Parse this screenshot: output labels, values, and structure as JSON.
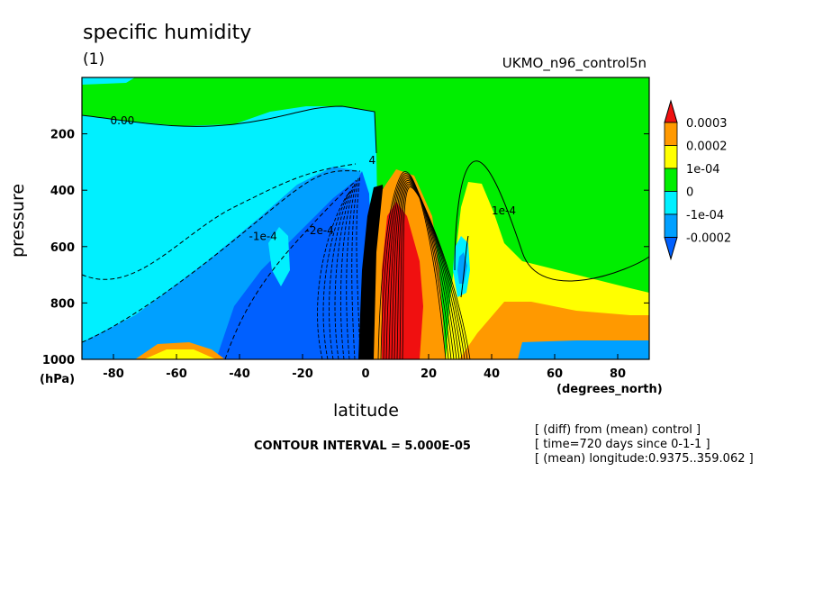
{
  "title": "specific humidity",
  "subtitle": "(1)",
  "run_label": "UKMO_n96_control5n",
  "contour_interval": "CONTOUR INTERVAL = 5.000E-05",
  "notes": [
    "[ (diff) from (mean) control ]",
    "[ time=720 days since 0-1-1 ]",
    "[ (mean) longitude:0.9375..359.062 ]"
  ],
  "colors": {
    "red": "#f01010",
    "orange": "#ff9900",
    "yellow": "#ffff00",
    "green": "#00ee00",
    "cyan": "#00f0ff",
    "light_blue": "#00a0ff",
    "blue": "#0060ff"
  },
  "chart_data": {
    "type": "contour",
    "title": "specific humidity",
    "xlabel": "latitude",
    "xunit": "(degrees_north)",
    "ylabel": "pressure",
    "yunit": "(hPa)",
    "xlim": [
      -90,
      90
    ],
    "ylim": [
      1000,
      0
    ],
    "xticks": [
      -80,
      -60,
      -40,
      -20,
      0,
      20,
      40,
      60,
      80
    ],
    "yticks": [
      200,
      400,
      600,
      800,
      1000
    ],
    "contour_labels": [
      {
        "text": "0.00",
        "x": -81,
        "y": 150
      },
      {
        "text": "-1e-4",
        "x": -37,
        "y": 560
      },
      {
        "text": "-2e-4",
        "x": -19,
        "y": 540
      },
      {
        "text": "1e-4",
        "x": 40,
        "y": 470
      },
      {
        "text": "4",
        "x": 1,
        "y": 290
      }
    ],
    "legend": {
      "placement": "right",
      "labels": [
        "0.0003",
        "0.0002",
        "1e-04",
        "0",
        "-1e-04",
        "-0.0002"
      ],
      "colors": [
        "#f01010",
        "#ff9900",
        "#ffff00",
        "#00ee00",
        "#00f0ff",
        "#00a0ff",
        "#0060ff"
      ]
    }
  }
}
